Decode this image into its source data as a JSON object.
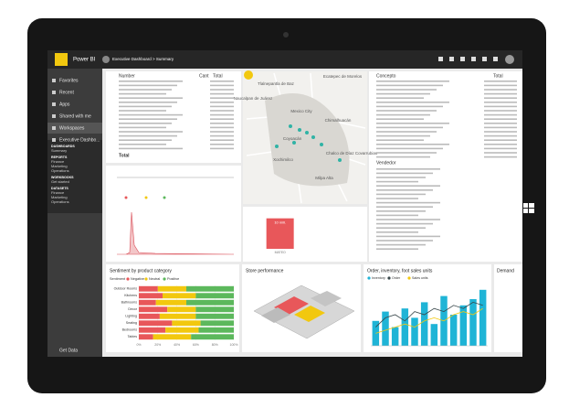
{
  "app": {
    "brand": "Power BI",
    "breadcrumb": "Executive Dashboard > Summary"
  },
  "nav": {
    "items": [
      "Favorites",
      "Recent",
      "Apps",
      "Shared with me",
      "Workspaces",
      "Executive Dashbo..."
    ],
    "sections": [
      {
        "heading": "DASHBOARDS",
        "items": [
          "Summary"
        ]
      },
      {
        "heading": "REPORTS",
        "items": [
          "Finance",
          "Marketing",
          "Operations"
        ]
      },
      {
        "heading": "WORKBOOKS",
        "items": [
          "Get started"
        ]
      },
      {
        "heading": "DATASETS",
        "items": [
          "Finance",
          "Marketing",
          "Operations"
        ]
      }
    ],
    "footer": "Get Data"
  },
  "table_left": {
    "headers": [
      "Number",
      "Cant",
      "Total"
    ],
    "total": "Total"
  },
  "map": {
    "labels": [
      "Ecatepec de Morelos",
      "Tlalnepantla de Baz",
      "Naucalpan de Juárez",
      "Mexico City",
      "Chimalhuacán",
      "Coyoacán",
      "Xochimilco",
      "Chalco de Díaz Covarrubias",
      "Milpa Alta"
    ]
  },
  "table_right": {
    "headers": [
      "Concepto",
      "Total"
    ],
    "second_header": "Vendedor"
  },
  "chart_data": [
    {
      "type": "bar",
      "categories": [
        "MATEO"
      ],
      "values": [
        10000000
      ],
      "value_labels": [
        "10 mill."
      ],
      "color": "#e8575a",
      "ylim": [
        0,
        12000000
      ]
    },
    {
      "type": "stacked-barh",
      "title": "Sentiment by product category",
      "legend_title": "Sentiment",
      "categories": [
        "Outdoor Rooms",
        "Kitchens",
        "Bathrooms",
        "Decor",
        "Lighting",
        "Seating",
        "Bedrooms",
        "Tables"
      ],
      "series": [
        {
          "name": "Negative",
          "color": "#e8575a",
          "values": [
            20,
            25,
            18,
            30,
            22,
            35,
            28,
            15
          ]
        },
        {
          "name": "Neutral",
          "color": "#f2c80f",
          "values": [
            30,
            35,
            32,
            30,
            38,
            30,
            35,
            40
          ]
        },
        {
          "name": "Positive",
          "color": "#5cb85c",
          "values": [
            50,
            40,
            50,
            40,
            40,
            35,
            37,
            45
          ]
        }
      ],
      "xlim": [
        0,
        100
      ],
      "xticks": [
        {
          "value": 0,
          "label": "0%"
        },
        {
          "value": 20,
          "label": "20%"
        },
        {
          "value": 40,
          "label": "40%"
        },
        {
          "value": 60,
          "label": "60%"
        },
        {
          "value": 80,
          "label": "80%"
        },
        {
          "value": 100,
          "label": "100%"
        }
      ]
    },
    {
      "type": "combo",
      "title": "Order, inventory, foot sales units",
      "categories": [
        null,
        null,
        null,
        null,
        null,
        null,
        null,
        null,
        null,
        null,
        null,
        null
      ],
      "series": [
        {
          "name": "Inventory",
          "color": "#1fb4d6",
          "values": [
            40,
            55,
            30,
            60,
            45,
            70,
            35,
            80,
            50,
            65,
            75,
            90
          ]
        },
        {
          "name": "Order",
          "color": "#374649",
          "values": [
            30,
            45,
            50,
            40,
            55,
            50,
            60,
            55,
            65,
            60,
            70,
            65
          ]
        },
        {
          "name": "Sales units",
          "color": "#f2c80f",
          "values": [
            20,
            25,
            30,
            35,
            30,
            40,
            45,
            40,
            50,
            55,
            50,
            60
          ]
        }
      ],
      "ylim": [
        0,
        100
      ]
    }
  ],
  "tiles": {
    "store": "Store performance",
    "demand": "Demand"
  }
}
